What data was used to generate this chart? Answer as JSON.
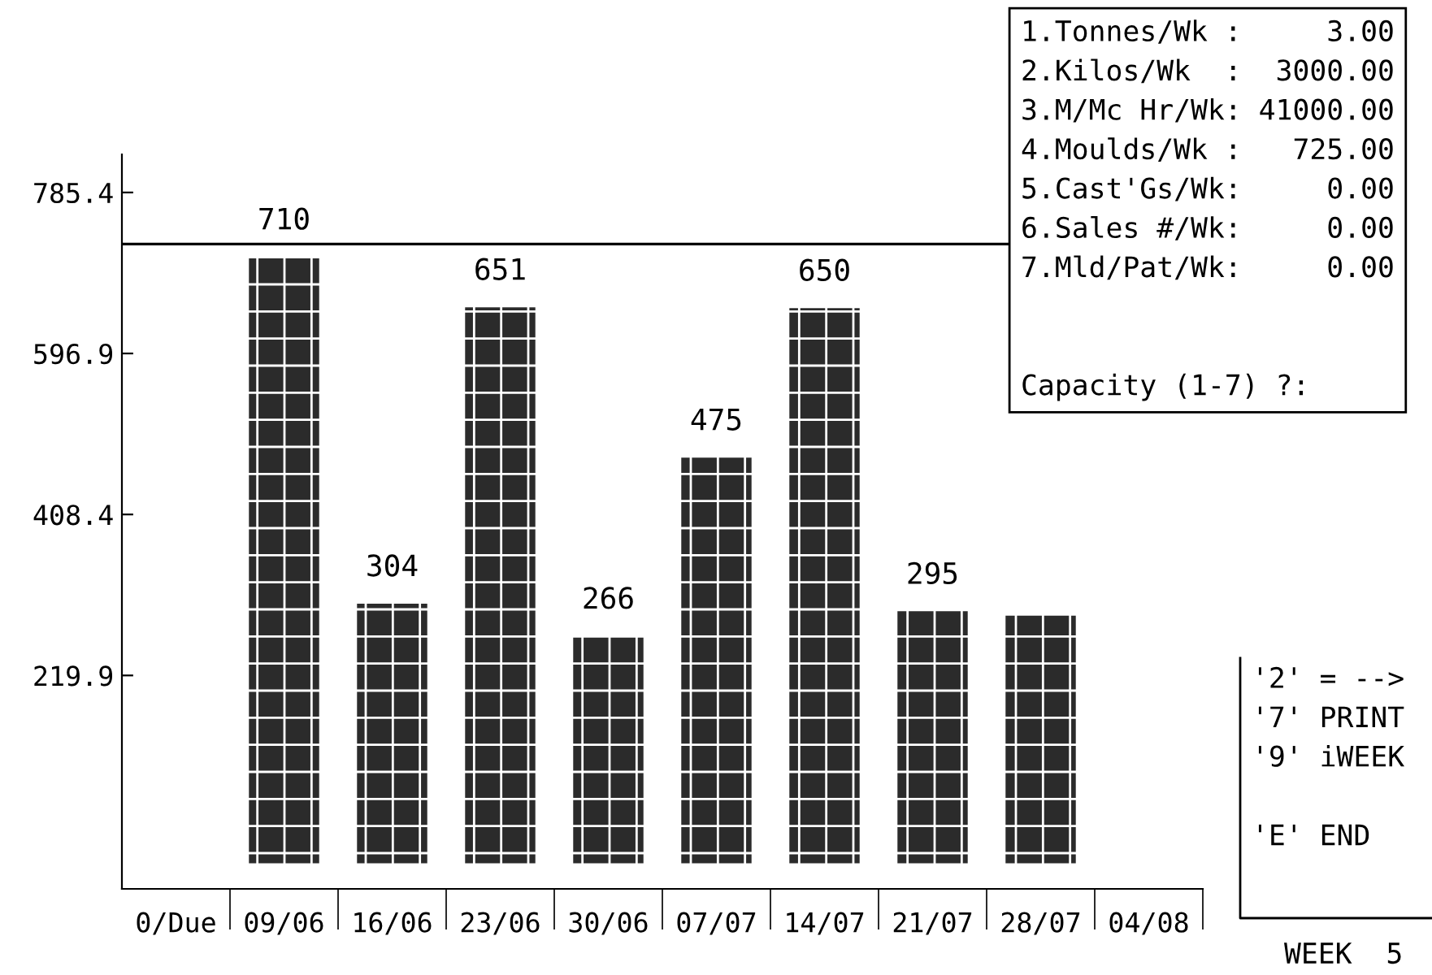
{
  "chart_data": {
    "type": "bar",
    "categories": [
      "0/Due",
      "09/06",
      "16/06",
      "23/06",
      "30/06",
      "07/07",
      "14/07",
      "21/07",
      "28/07",
      "04/08"
    ],
    "values": [
      null,
      710,
      304,
      651,
      266,
      475,
      650,
      295,
      290,
      null
    ],
    "value_labels": [
      null,
      "710",
      "304",
      "651",
      "266",
      "475",
      "650",
      "295",
      null,
      null
    ],
    "color": "#2b2b2b",
    "ylim": [
      -30,
      830
    ],
    "yticks": [
      219.9,
      408.4,
      596.9,
      785.4
    ],
    "ref_lines": [
      {
        "axis": "y",
        "value": 725,
        "label": null,
        "color": "#000000",
        "line_style": "solid"
      }
    ],
    "grid": false,
    "legend": false,
    "annotations": [
      "1.Tonnes/Wk :     3.00\n2.Kilos/Wk  :  3000.00\n3.M/Mc Hr/Wk: 41000.00\n4.Moulds/Wk :   725.00\n5.Cast'Gs/Wk:     0.00\n6.Sales #/Wk:     0.00\n7.Mld/Pat/Wk:     0.00\n\n\nCapacity (1-7) ?:",
      "'2' = -->\n'7' PRINT\n'9' iWEEK\n\n'E' END",
      "WEEK  5"
    ]
  }
}
